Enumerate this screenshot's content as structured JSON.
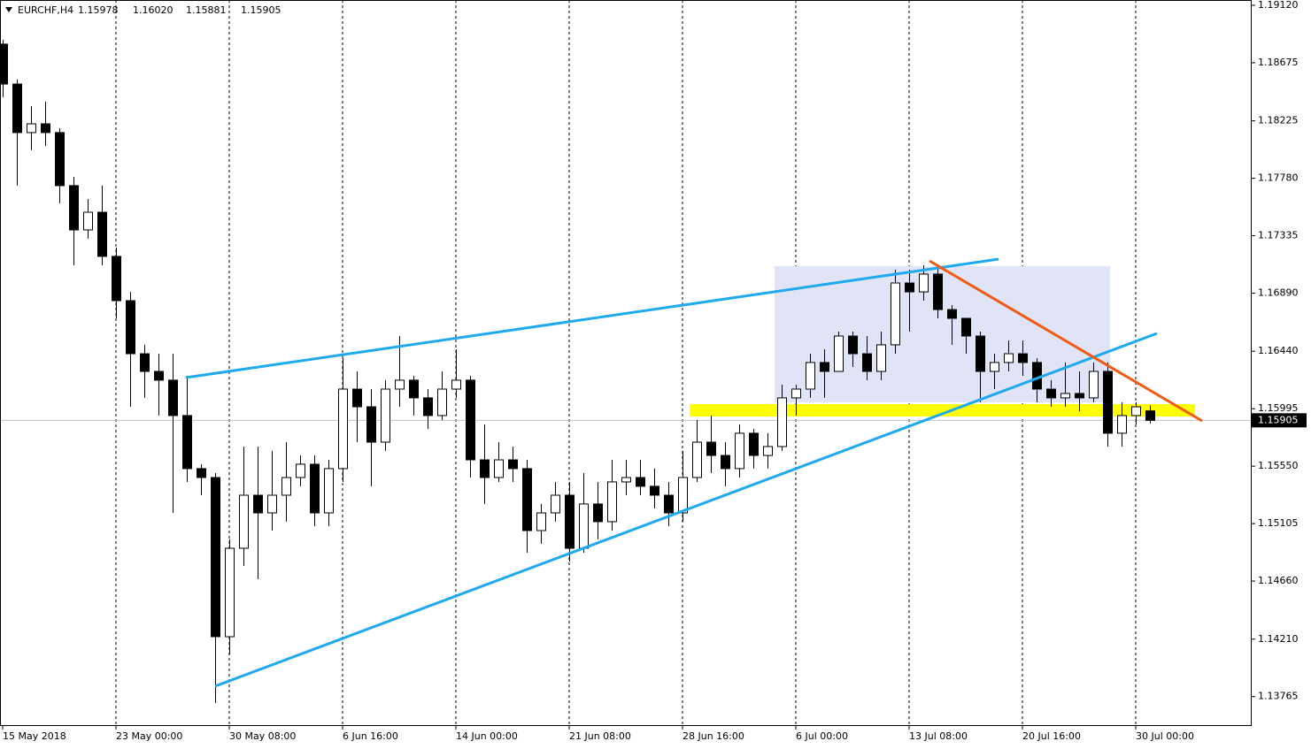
{
  "chart_data": {
    "type": "candlestick",
    "title": "EURCHF,H4",
    "title_values": [
      "1.15978",
      "1.16020",
      "1.15881",
      "1.15905"
    ],
    "categories": [
      "15 May 2018",
      null,
      null,
      null,
      null,
      null,
      null,
      null,
      "23 May 00:00",
      null,
      null,
      null,
      null,
      null,
      null,
      null,
      "30 May 08:00",
      null,
      null,
      null,
      null,
      null,
      null,
      null,
      "6 Jun 16:00",
      null,
      null,
      null,
      null,
      null,
      null,
      null,
      "14 Jun 00:00",
      null,
      null,
      null,
      null,
      null,
      null,
      null,
      "21 Jun 08:00",
      null,
      null,
      null,
      null,
      null,
      null,
      null,
      "28 Jun 16:00",
      null,
      null,
      null,
      null,
      null,
      null,
      null,
      "6 Jul 00:00",
      null,
      null,
      null,
      null,
      null,
      null,
      null,
      "13 Jul 08:00",
      null,
      null,
      null,
      null,
      null,
      null,
      null,
      "20 Jul 16:00",
      null,
      null,
      null,
      null,
      null,
      null,
      null,
      "30 Jul 00:00",
      null
    ],
    "open": [
      1.18819,
      1.1851,
      1.18134,
      1.18202,
      1.18134,
      1.17723,
      1.1738,
      1.17517,
      1.17175,
      1.16832,
      1.16421,
      1.16284,
      1.16216,
      1.15942,
      1.15531,
      1.15462,
      1.14229,
      1.14914,
      1.15325,
      1.15188,
      1.15325,
      1.15462,
      1.15565,
      1.15188,
      1.15531,
      1.16147,
      1.1601,
      1.15736,
      1.16147,
      1.16216,
      1.16079,
      1.15942,
      1.16147,
      1.16216,
      1.15599,
      1.15462,
      1.15599,
      1.15531,
      1.15051,
      1.15188,
      1.15325,
      1.14914,
      1.15257,
      1.1512,
      1.15428,
      1.15462,
      1.15394,
      1.15325,
      1.15188,
      1.15462,
      1.15736,
      1.15633,
      1.15531,
      1.15805,
      1.15633,
      1.15702,
      1.16079,
      1.16147,
      1.16353,
      1.16284,
      1.16558,
      1.16421,
      1.16284,
      1.1649,
      1.16969,
      1.169,
      1.17038,
      1.16763,
      1.16695,
      1.16558,
      1.16284,
      1.16353,
      1.16421,
      1.16353,
      1.16147,
      1.16079,
      1.16113,
      1.16079,
      1.16284,
      1.15805,
      1.15942,
      1.15978
    ],
    "high": [
      1.18853,
      1.18545,
      1.18339,
      1.18373,
      1.18168,
      1.17791,
      1.1762,
      1.17723,
      1.17243,
      1.169,
      1.1649,
      1.16421,
      1.16421,
      1.1625,
      1.15565,
      1.15496,
      1.14983,
      1.15702,
      1.15702,
      1.15668,
      1.15736,
      1.15633,
      1.15633,
      1.15599,
      1.16387,
      1.16284,
      1.16147,
      1.16216,
      1.16558,
      1.1625,
      1.16147,
      1.16284,
      1.16455,
      1.1625,
      1.15873,
      1.15736,
      1.15702,
      1.15599,
      1.15257,
      1.15428,
      1.15428,
      1.15496,
      1.15428,
      1.15599,
      1.15599,
      1.15599,
      1.15531,
      1.15428,
      1.15668,
      1.15907,
      1.15942,
      1.15736,
      1.15873,
      1.15839,
      1.15805,
      1.16181,
      1.16181,
      1.16421,
      1.16455,
      1.16592,
      1.16592,
      1.16558,
      1.16592,
      1.17072,
      1.17072,
      1.17106,
      1.17106,
      1.16798,
      1.16695,
      1.16592,
      1.16421,
      1.16524,
      1.16524,
      1.16387,
      1.16216,
      1.16353,
      1.16284,
      1.16353,
      1.16353,
      1.16044,
      1.16044,
      1.1602
    ],
    "low": [
      1.18408,
      1.17723,
      1.17997,
      1.18031,
      1.17586,
      1.17106,
      1.17312,
      1.17106,
      1.16695,
      1.1601,
      1.16079,
      1.15942,
      1.15188,
      1.15428,
      1.15325,
      1.13715,
      1.14092,
      1.14777,
      1.14674,
      1.15051,
      1.1512,
      1.15394,
      1.15085,
      1.15085,
      1.15428,
      1.15736,
      1.15394,
      1.15668,
      1.1601,
      1.15942,
      1.15839,
      1.15907,
      1.16079,
      1.15462,
      1.15257,
      1.15428,
      1.15428,
      1.1488,
      1.14948,
      1.1512,
      1.14811,
      1.1488,
      1.14983,
      1.15051,
      1.15325,
      1.15325,
      1.15222,
      1.15085,
      1.1512,
      1.15428,
      1.15496,
      1.15394,
      1.15462,
      1.15531,
      1.15531,
      1.15668,
      1.15942,
      1.16079,
      1.16079,
      1.16284,
      1.16318,
      1.16216,
      1.16216,
      1.16421,
      1.16592,
      1.16832,
      1.16695,
      1.1649,
      1.16421,
      1.16044,
      1.16147,
      1.16284,
      1.1625,
      1.16044,
      1.1601,
      1.1601,
      1.15976,
      1.16044,
      1.15702,
      1.15702,
      1.15873,
      1.15881
    ],
    "close": [
      1.1851,
      1.18134,
      1.18202,
      1.18134,
      1.17723,
      1.1738,
      1.17517,
      1.17175,
      1.16832,
      1.16421,
      1.16284,
      1.16216,
      1.15942,
      1.15531,
      1.15462,
      1.14229,
      1.14914,
      1.15325,
      1.15188,
      1.15325,
      1.15462,
      1.15565,
      1.15188,
      1.15531,
      1.16147,
      1.1601,
      1.15736,
      1.16147,
      1.16216,
      1.16079,
      1.15942,
      1.16147,
      1.16216,
      1.15599,
      1.15462,
      1.15599,
      1.15531,
      1.15051,
      1.15188,
      1.15325,
      1.14914,
      1.15257,
      1.1512,
      1.15428,
      1.15462,
      1.15394,
      1.15325,
      1.15188,
      1.15462,
      1.15736,
      1.15633,
      1.15531,
      1.15805,
      1.15633,
      1.15702,
      1.16079,
      1.16147,
      1.16353,
      1.16284,
      1.16558,
      1.16421,
      1.16284,
      1.1649,
      1.16969,
      1.169,
      1.17038,
      1.16763,
      1.16695,
      1.16558,
      1.16284,
      1.16353,
      1.16421,
      1.16353,
      1.16147,
      1.16079,
      1.16113,
      1.16079,
      1.16284,
      1.15805,
      1.15942,
      1.1601,
      1.15905
    ],
    "ylim": [
      1.13544,
      1.19161
    ],
    "yticks": [
      {
        "value": 1.1912,
        "label": "1.19120"
      },
      1.18675,
      1.18225,
      {
        "value": 1.1778,
        "label": "1.17780"
      },
      1.17335,
      {
        "value": 1.1689,
        "label": "1.16890"
      },
      {
        "value": 1.1644,
        "label": "1.16440"
      },
      1.15995,
      {
        "value": 1.1555,
        "label": "1.15550"
      },
      1.15105,
      {
        "value": 1.1466,
        "label": "1.14660"
      },
      {
        "value": 1.1421,
        "label": "1.14210"
      },
      1.13765
    ],
    "last_price": {
      "value": 1.15905,
      "label": "1.15905"
    },
    "grid": true
  }
}
